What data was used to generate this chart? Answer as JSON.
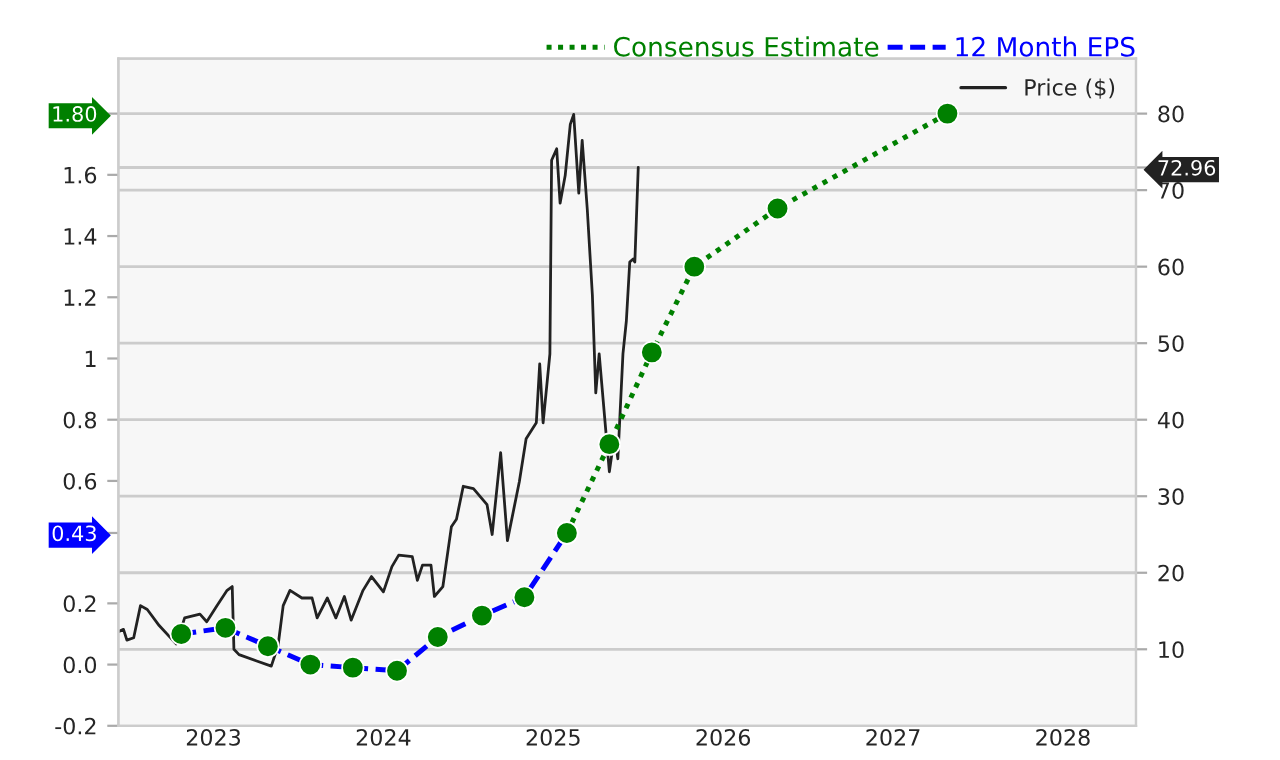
{
  "chart_data": {
    "type": "line",
    "xlim": [
      2022.44,
      2028.43
    ],
    "xticks": [
      2023,
      2024,
      2025,
      2026,
      2027,
      2028
    ],
    "ylim": [
      -0.2,
      1.98
    ],
    "yticks": [
      {
        "value": -0.2,
        "label": "-0.2"
      },
      {
        "value": 0.0,
        "label": "0.0"
      },
      0.2,
      0.6,
      0.8,
      {
        "value": 1.0,
        "label": "1"
      },
      1.2,
      1.4,
      1.6,
      {
        "value": 0.43,
        "label": "0.43"
      },
      {
        "value": 1.8,
        "label": "1.80"
      }
    ],
    "y2lim": [
      0,
      87.2
    ],
    "y2ticks": [
      10,
      20,
      30,
      40,
      50,
      60,
      70,
      80,
      {
        "value": 72.96,
        "label": "72.96"
      }
    ],
    "grid": true,
    "legend": "top right",
    "series": [
      {
        "name": "Price ($)",
        "axis": "y2",
        "color": "#222222",
        "line_style": "solid",
        "marker": "none",
        "x": [
          2022.44,
          2022.47,
          2022.49,
          2022.53,
          2022.57,
          2022.61,
          2022.68,
          2022.78,
          2022.83,
          2022.92,
          2022.96,
          2023.02,
          2023.08,
          2023.11,
          2023.12,
          2023.15,
          2023.25,
          2023.34,
          2023.38,
          2023.41,
          2023.45,
          2023.52,
          2023.58,
          2023.61,
          2023.67,
          2023.72,
          2023.77,
          2023.81,
          2023.88,
          2023.93,
          2024.0,
          2024.05,
          2024.09,
          2024.17,
          2024.2,
          2024.23,
          2024.28,
          2024.3,
          2024.35,
          2024.4,
          2024.43,
          2024.47,
          2024.53,
          2024.61,
          2024.64,
          2024.69,
          2024.73,
          2024.8,
          2024.84,
          2024.9,
          2024.92,
          2024.94,
          2024.98,
          2024.99,
          2025.02,
          2025.04,
          2025.07,
          2025.1,
          2025.12,
          2025.15,
          2025.17,
          2025.2,
          2025.23,
          2025.25,
          2025.27,
          2025.31,
          2025.33,
          2025.36,
          2025.38,
          2025.41,
          2025.43,
          2025.45,
          2025.47,
          2025.48,
          2025.5
        ],
        "values": [
          12.3,
          12.6,
          11.2,
          11.5,
          15.7,
          15.2,
          13.1,
          10.7,
          14.1,
          14.6,
          13.6,
          15.7,
          17.7,
          18.2,
          10.0,
          9.3,
          8.5,
          7.8,
          10.5,
          15.7,
          17.7,
          16.7,
          16.7,
          14.1,
          16.7,
          14.1,
          16.9,
          13.8,
          17.7,
          19.5,
          17.5,
          20.8,
          22.3,
          22.1,
          19.0,
          21.0,
          21.0,
          16.9,
          18.2,
          26.0,
          27.0,
          31.3,
          31.0,
          28.9,
          25.0,
          35.7,
          24.2,
          31.9,
          37.5,
          39.6,
          47.3,
          39.6,
          48.6,
          73.9,
          75.4,
          68.3,
          71.9,
          78.6,
          79.9,
          69.6,
          76.5,
          67.5,
          56.3,
          43.5,
          48.6,
          38.3,
          33.2,
          37.9,
          34.9,
          48.6,
          52.9,
          60.6,
          61.0,
          60.6,
          72.96
        ]
      },
      {
        "name": "12 Month EPS",
        "color": "#0000ff",
        "line_style": "dashed",
        "marker": "circle",
        "x": [
          2022.81,
          2023.07,
          2023.32,
          2023.57,
          2023.82,
          2024.08,
          2024.32,
          2024.58,
          2024.83,
          2025.08
        ],
        "values": [
          0.1,
          0.12,
          0.06,
          0.0,
          -0.01,
          -0.02,
          0.09,
          0.16,
          0.22,
          0.43
        ],
        "colors": [
          "#008000",
          "#008000",
          "#008000",
          "#008000",
          "#008000",
          "#008000",
          "#008000",
          "#008000",
          "#008000",
          "#008000"
        ]
      },
      {
        "name": "Consensus Estimate",
        "color": "#008000",
        "line_style": "dotted",
        "marker": "circle",
        "x": [
          2025.08,
          2025.33,
          2025.58,
          2025.83,
          2026.32,
          2027.32
        ],
        "values": [
          0.43,
          0.72,
          1.02,
          1.3,
          1.49,
          1.8
        ],
        "colors": [
          "#008000",
          "#008000",
          "#008000",
          "#008000",
          "#008000",
          "#008000"
        ]
      }
    ]
  }
}
